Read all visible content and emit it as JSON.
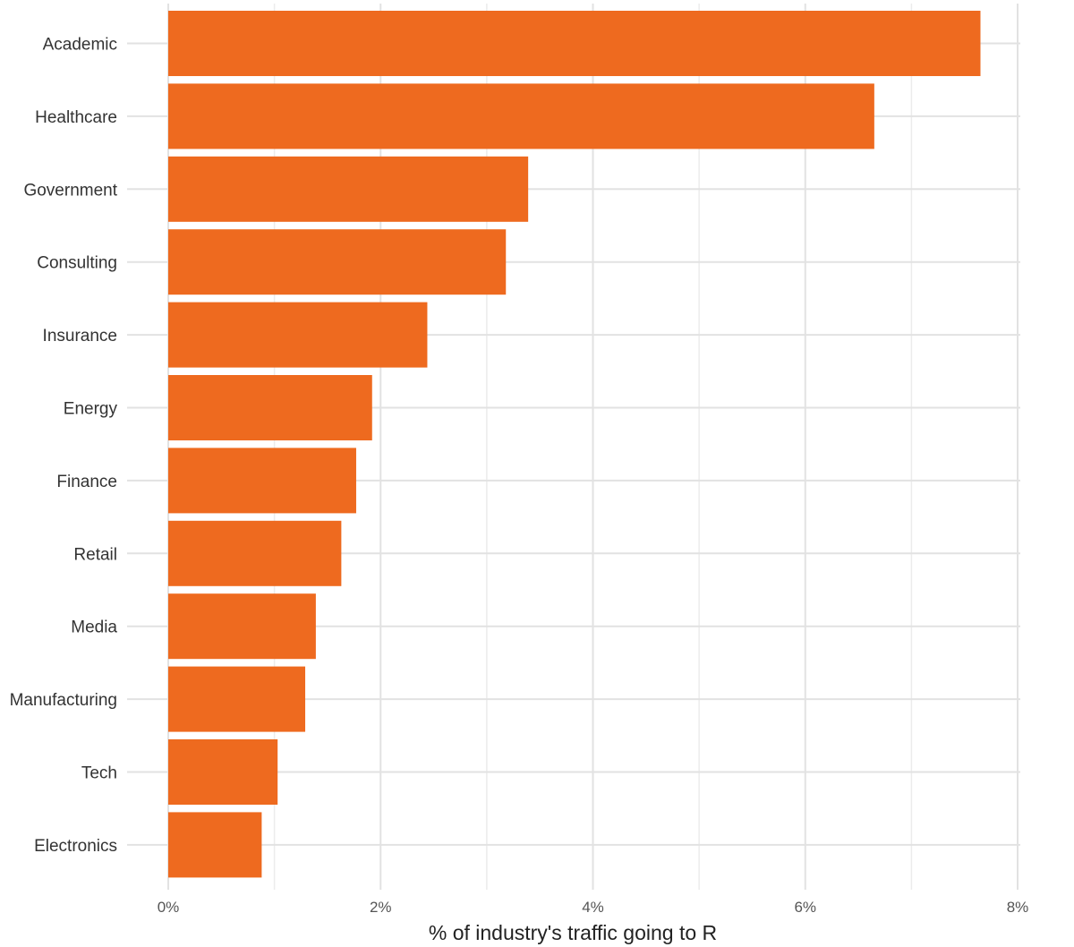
{
  "chart_data": {
    "type": "bar",
    "orientation": "horizontal",
    "title": "",
    "xlabel": "% of industry's traffic going to R",
    "ylabel": "",
    "xlim": [
      0,
      8
    ],
    "x_ticks": [
      {
        "value": 0,
        "label": "0%"
      },
      {
        "value": 2,
        "label": "2%"
      },
      {
        "value": 4,
        "label": "4%"
      },
      {
        "value": 6,
        "label": "6%"
      },
      {
        "value": 8,
        "label": "8%"
      }
    ],
    "grid": true,
    "bar_color": "#EE6A1F",
    "categories": [
      "Academic",
      "Healthcare",
      "Government",
      "Consulting",
      "Insurance",
      "Energy",
      "Finance",
      "Retail",
      "Media",
      "Manufacturing",
      "Tech",
      "Electronics"
    ],
    "values": [
      7.65,
      6.65,
      3.39,
      3.18,
      2.44,
      1.92,
      1.77,
      1.63,
      1.39,
      1.29,
      1.03,
      0.88
    ]
  }
}
